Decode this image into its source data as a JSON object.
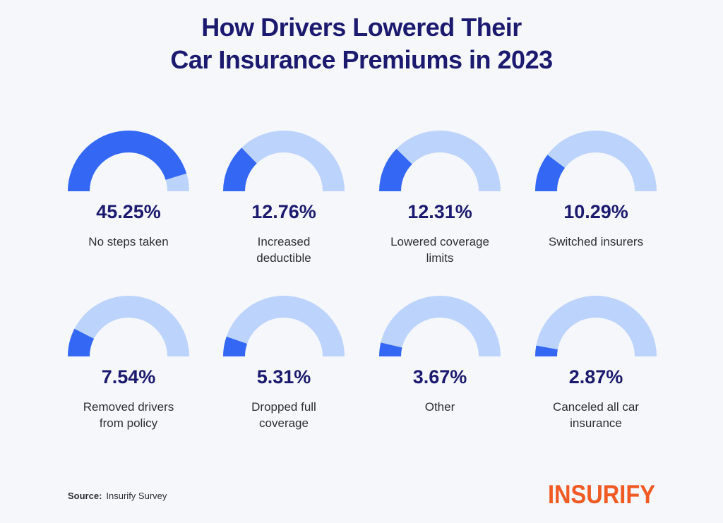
{
  "title_lines": [
    "How Drivers Lowered Their",
    "Car Insurance Premiums in 2023"
  ],
  "chart_data": {
    "type": "gauge",
    "title": "How Drivers Lowered Their Car Insurance Premiums in 2023",
    "gauge_range": [
      0,
      50
    ],
    "colors": {
      "fill": "#3468f4",
      "track": "#bcd3fb"
    },
    "items": [
      {
        "value": 45.25,
        "value_label": "45.25%",
        "label_lines": [
          "No steps taken"
        ]
      },
      {
        "value": 12.76,
        "value_label": "12.76%",
        "label_lines": [
          "Increased",
          "deductible"
        ]
      },
      {
        "value": 12.31,
        "value_label": "12.31%",
        "label_lines": [
          "Lowered coverage",
          "limits"
        ]
      },
      {
        "value": 10.29,
        "value_label": "10.29%",
        "label_lines": [
          "Switched insurers"
        ]
      },
      {
        "value": 7.54,
        "value_label": "7.54%",
        "label_lines": [
          "Removed drivers",
          "from policy"
        ]
      },
      {
        "value": 5.31,
        "value_label": "5.31%",
        "label_lines": [
          "Dropped full",
          "coverage"
        ]
      },
      {
        "value": 3.67,
        "value_label": "3.67%",
        "label_lines": [
          "Other"
        ]
      },
      {
        "value": 2.87,
        "value_label": "2.87%",
        "label_lines": [
          "Canceled all car",
          "insurance"
        ]
      }
    ]
  },
  "footer": {
    "source_label": "Source:",
    "source_text": "Insurify Survey",
    "logo_text": "INSURIFY"
  }
}
